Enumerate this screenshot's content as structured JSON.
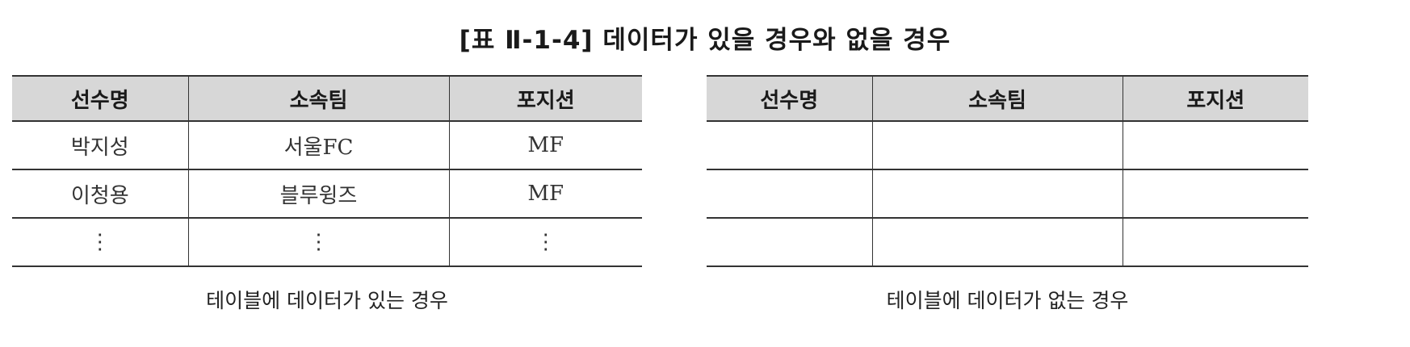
{
  "title": "[표 Ⅱ-1-4] 데이터가 있을 경우와 없을 경우",
  "left_table": {
    "headers": [
      "선수명",
      "소속팀",
      "포지션"
    ],
    "rows": [
      [
        "박지성",
        "서울FC",
        "MF"
      ],
      [
        "이청용",
        "블루윙즈",
        "MF"
      ],
      [
        "⋮",
        "⋮",
        "⋮"
      ]
    ],
    "caption": "테이블에 데이터가 있는 경우"
  },
  "right_table": {
    "headers": [
      "선수명",
      "소속팀",
      "포지션"
    ],
    "rows": [
      [
        "",
        "",
        ""
      ],
      [
        "",
        "",
        ""
      ],
      [
        "",
        "",
        ""
      ]
    ],
    "caption": "테이블에 데이터가 없는 경우"
  }
}
